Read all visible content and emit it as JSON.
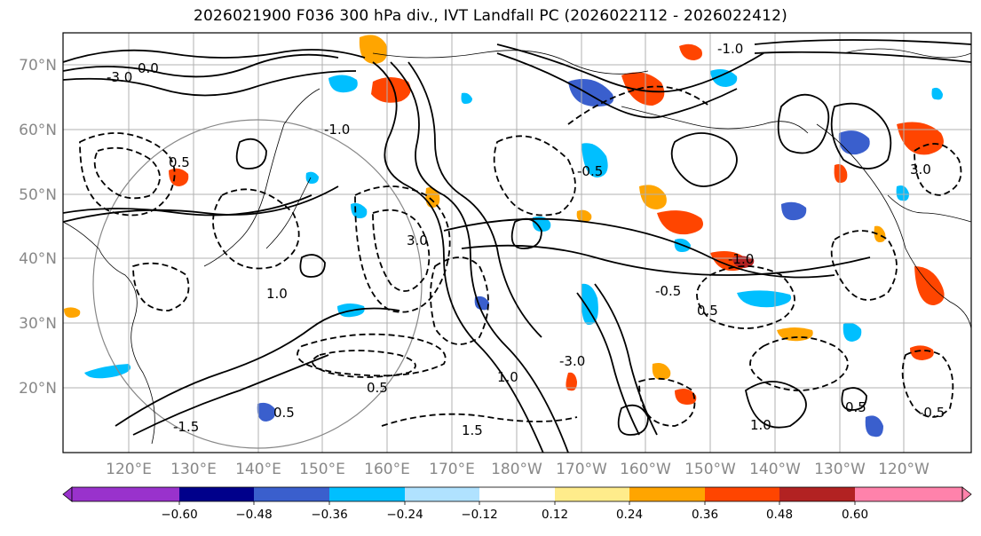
{
  "title": "2026021900 F036 300 hPa div., IVT Landfall PC (2026022112 - 2026022412)",
  "map": {
    "latitude_labels": [
      "70°N",
      "60°N",
      "50°N",
      "40°N",
      "30°N",
      "20°N"
    ],
    "longitude_labels": [
      "120°E",
      "130°E",
      "140°E",
      "150°E",
      "160°E",
      "170°E",
      "180°W",
      "170°W",
      "160°W",
      "150°W",
      "140°W",
      "130°W",
      "120°W"
    ],
    "contour_labels": [
      "-3.0",
      "0.0",
      "-1.0",
      "3.0",
      "1.0",
      "-0.5",
      "0.5",
      "1.5",
      "-1.5"
    ]
  },
  "colorbar": {
    "colors": [
      "#9932cc",
      "#00008b",
      "#3a5fcd",
      "#00bfff",
      "#b0e2ff",
      "#ffffff",
      "#ffec8b",
      "#ffa500",
      "#ff4500",
      "#b22222",
      "#ff82ab"
    ],
    "tick_labels": [
      "−0.60",
      "−0.48",
      "−0.36",
      "−0.24",
      "−0.12",
      "0.12",
      "0.24",
      "0.36",
      "0.48",
      "0.60"
    ]
  },
  "colors": {
    "grid": "#b0b0b0",
    "axis_labels": "#888888",
    "contour": "#000000"
  }
}
